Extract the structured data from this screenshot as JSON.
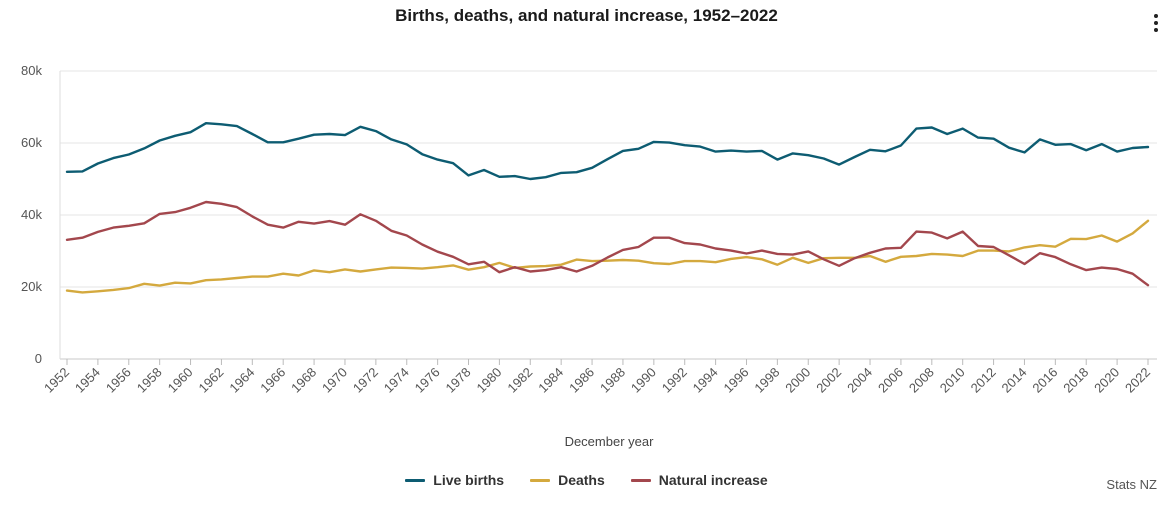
{
  "header": {
    "title": "Births, deaths, and natural increase, 1952–2022",
    "menu_icon": "vertical-ellipsis-icon"
  },
  "source": "Stats NZ",
  "chart_data": {
    "type": "line",
    "title": "Births, deaths, and natural increase, 1952–2022",
    "xlabel": "December year",
    "ylabel": "",
    "xlim": [
      1952,
      2022
    ],
    "ylim": [
      0,
      80000
    ],
    "yticks": [
      0,
      20000,
      40000,
      60000,
      80000
    ],
    "ytick_labels": [
      "0",
      "20k",
      "40k",
      "60k",
      "80k"
    ],
    "xticks": [
      1952,
      1954,
      1956,
      1958,
      1960,
      1962,
      1964,
      1966,
      1968,
      1970,
      1972,
      1974,
      1976,
      1978,
      1980,
      1982,
      1984,
      1986,
      1988,
      1990,
      1992,
      1994,
      1996,
      1998,
      2000,
      2002,
      2004,
      2006,
      2008,
      2010,
      2012,
      2014,
      2016,
      2018,
      2020,
      2022
    ],
    "xtick_labels": [
      "1952",
      "1954",
      "1956",
      "1958",
      "1960",
      "1962",
      "1964",
      "1966",
      "1968",
      "1970",
      "1972",
      "1974",
      "1976",
      "1978",
      "1980",
      "1982",
      "1984",
      "1986",
      "1988",
      "1990",
      "1992",
      "1994",
      "1996",
      "1998",
      "2000",
      "2002",
      "2004",
      "2006",
      "2008",
      "2010",
      "2012",
      "2014",
      "2016",
      "2018",
      "2020",
      "2022"
    ],
    "grid": "horizontal",
    "legend_position": "bottom-center",
    "x": [
      1952,
      1953,
      1954,
      1955,
      1956,
      1957,
      1958,
      1959,
      1960,
      1961,
      1962,
      1963,
      1964,
      1965,
      1966,
      1967,
      1968,
      1969,
      1970,
      1971,
      1972,
      1973,
      1974,
      1975,
      1976,
      1977,
      1978,
      1979,
      1980,
      1981,
      1982,
      1983,
      1984,
      1985,
      1986,
      1987,
      1988,
      1989,
      1990,
      1991,
      1992,
      1993,
      1994,
      1995,
      1996,
      1997,
      1998,
      1999,
      2000,
      2001,
      2002,
      2003,
      2004,
      2005,
      2006,
      2007,
      2008,
      2009,
      2010,
      2011,
      2012,
      2013,
      2014,
      2015,
      2016,
      2017,
      2018,
      2019,
      2020,
      2021,
      2022
    ],
    "series": [
      {
        "name": "Live births",
        "color": "#0d5c72",
        "values": [
          52000,
          52100,
          54300,
          55800,
          56800,
          58500,
          60700,
          62000,
          63000,
          65500,
          65200,
          64700,
          62500,
          60200,
          60200,
          61200,
          62300,
          62500,
          62200,
          64500,
          63300,
          61000,
          59600,
          56900,
          55400,
          54400,
          51000,
          52500,
          50600,
          50800,
          50000,
          50500,
          51700,
          51900,
          53100,
          55500,
          57800,
          58400,
          60300,
          60100,
          59400,
          59000,
          57600,
          57900,
          57600,
          57800,
          55400,
          57100,
          56600,
          55700,
          54000,
          56100,
          58100,
          57700,
          59300,
          64000,
          64300,
          62500,
          64000,
          61500,
          61200,
          58700,
          57400,
          61000,
          59500,
          59700,
          58000,
          59700,
          57600,
          58600,
          58900
        ]
      },
      {
        "name": "Deaths",
        "color": "#d4a93e",
        "values": [
          19000,
          18500,
          18800,
          19200,
          19700,
          20900,
          20400,
          21200,
          21000,
          21900,
          22100,
          22500,
          22900,
          22900,
          23700,
          23200,
          24600,
          24100,
          24900,
          24300,
          24900,
          25400,
          25300,
          25100,
          25500,
          26000,
          24800,
          25500,
          26700,
          25300,
          25700,
          25800,
          26200,
          27600,
          27200,
          27300,
          27500,
          27300,
          26600,
          26400,
          27200,
          27200,
          26900,
          27800,
          28300,
          27700,
          26200,
          28100,
          26700,
          28000,
          28100,
          28100,
          28600,
          27000,
          28400,
          28600,
          29200,
          29000,
          28600,
          30100,
          30100,
          29900,
          31000,
          31600,
          31200,
          33400,
          33300,
          34300,
          32600,
          34900,
          38400
        ]
      },
      {
        "name": "Natural increase",
        "color": "#a3474d",
        "values": [
          33100,
          33700,
          35300,
          36500,
          37000,
          37700,
          40300,
          40800,
          42000,
          43600,
          43100,
          42200,
          39600,
          37300,
          36500,
          38100,
          37600,
          38300,
          37300,
          40200,
          38400,
          35600,
          34300,
          31800,
          29800,
          28400,
          26300,
          27000,
          24100,
          25500,
          24300,
          24700,
          25500,
          24300,
          25900,
          28200,
          30300,
          31100,
          33700,
          33700,
          32200,
          31800,
          30700,
          30100,
          29300,
          30100,
          29200,
          29000,
          29900,
          27700,
          25900,
          28000,
          29500,
          30700,
          30900,
          35400,
          35100,
          33500,
          35400,
          31400,
          31100,
          28800,
          26400,
          29400,
          28300,
          26300,
          24700,
          25400,
          25000,
          23700,
          20500
        ]
      }
    ]
  }
}
